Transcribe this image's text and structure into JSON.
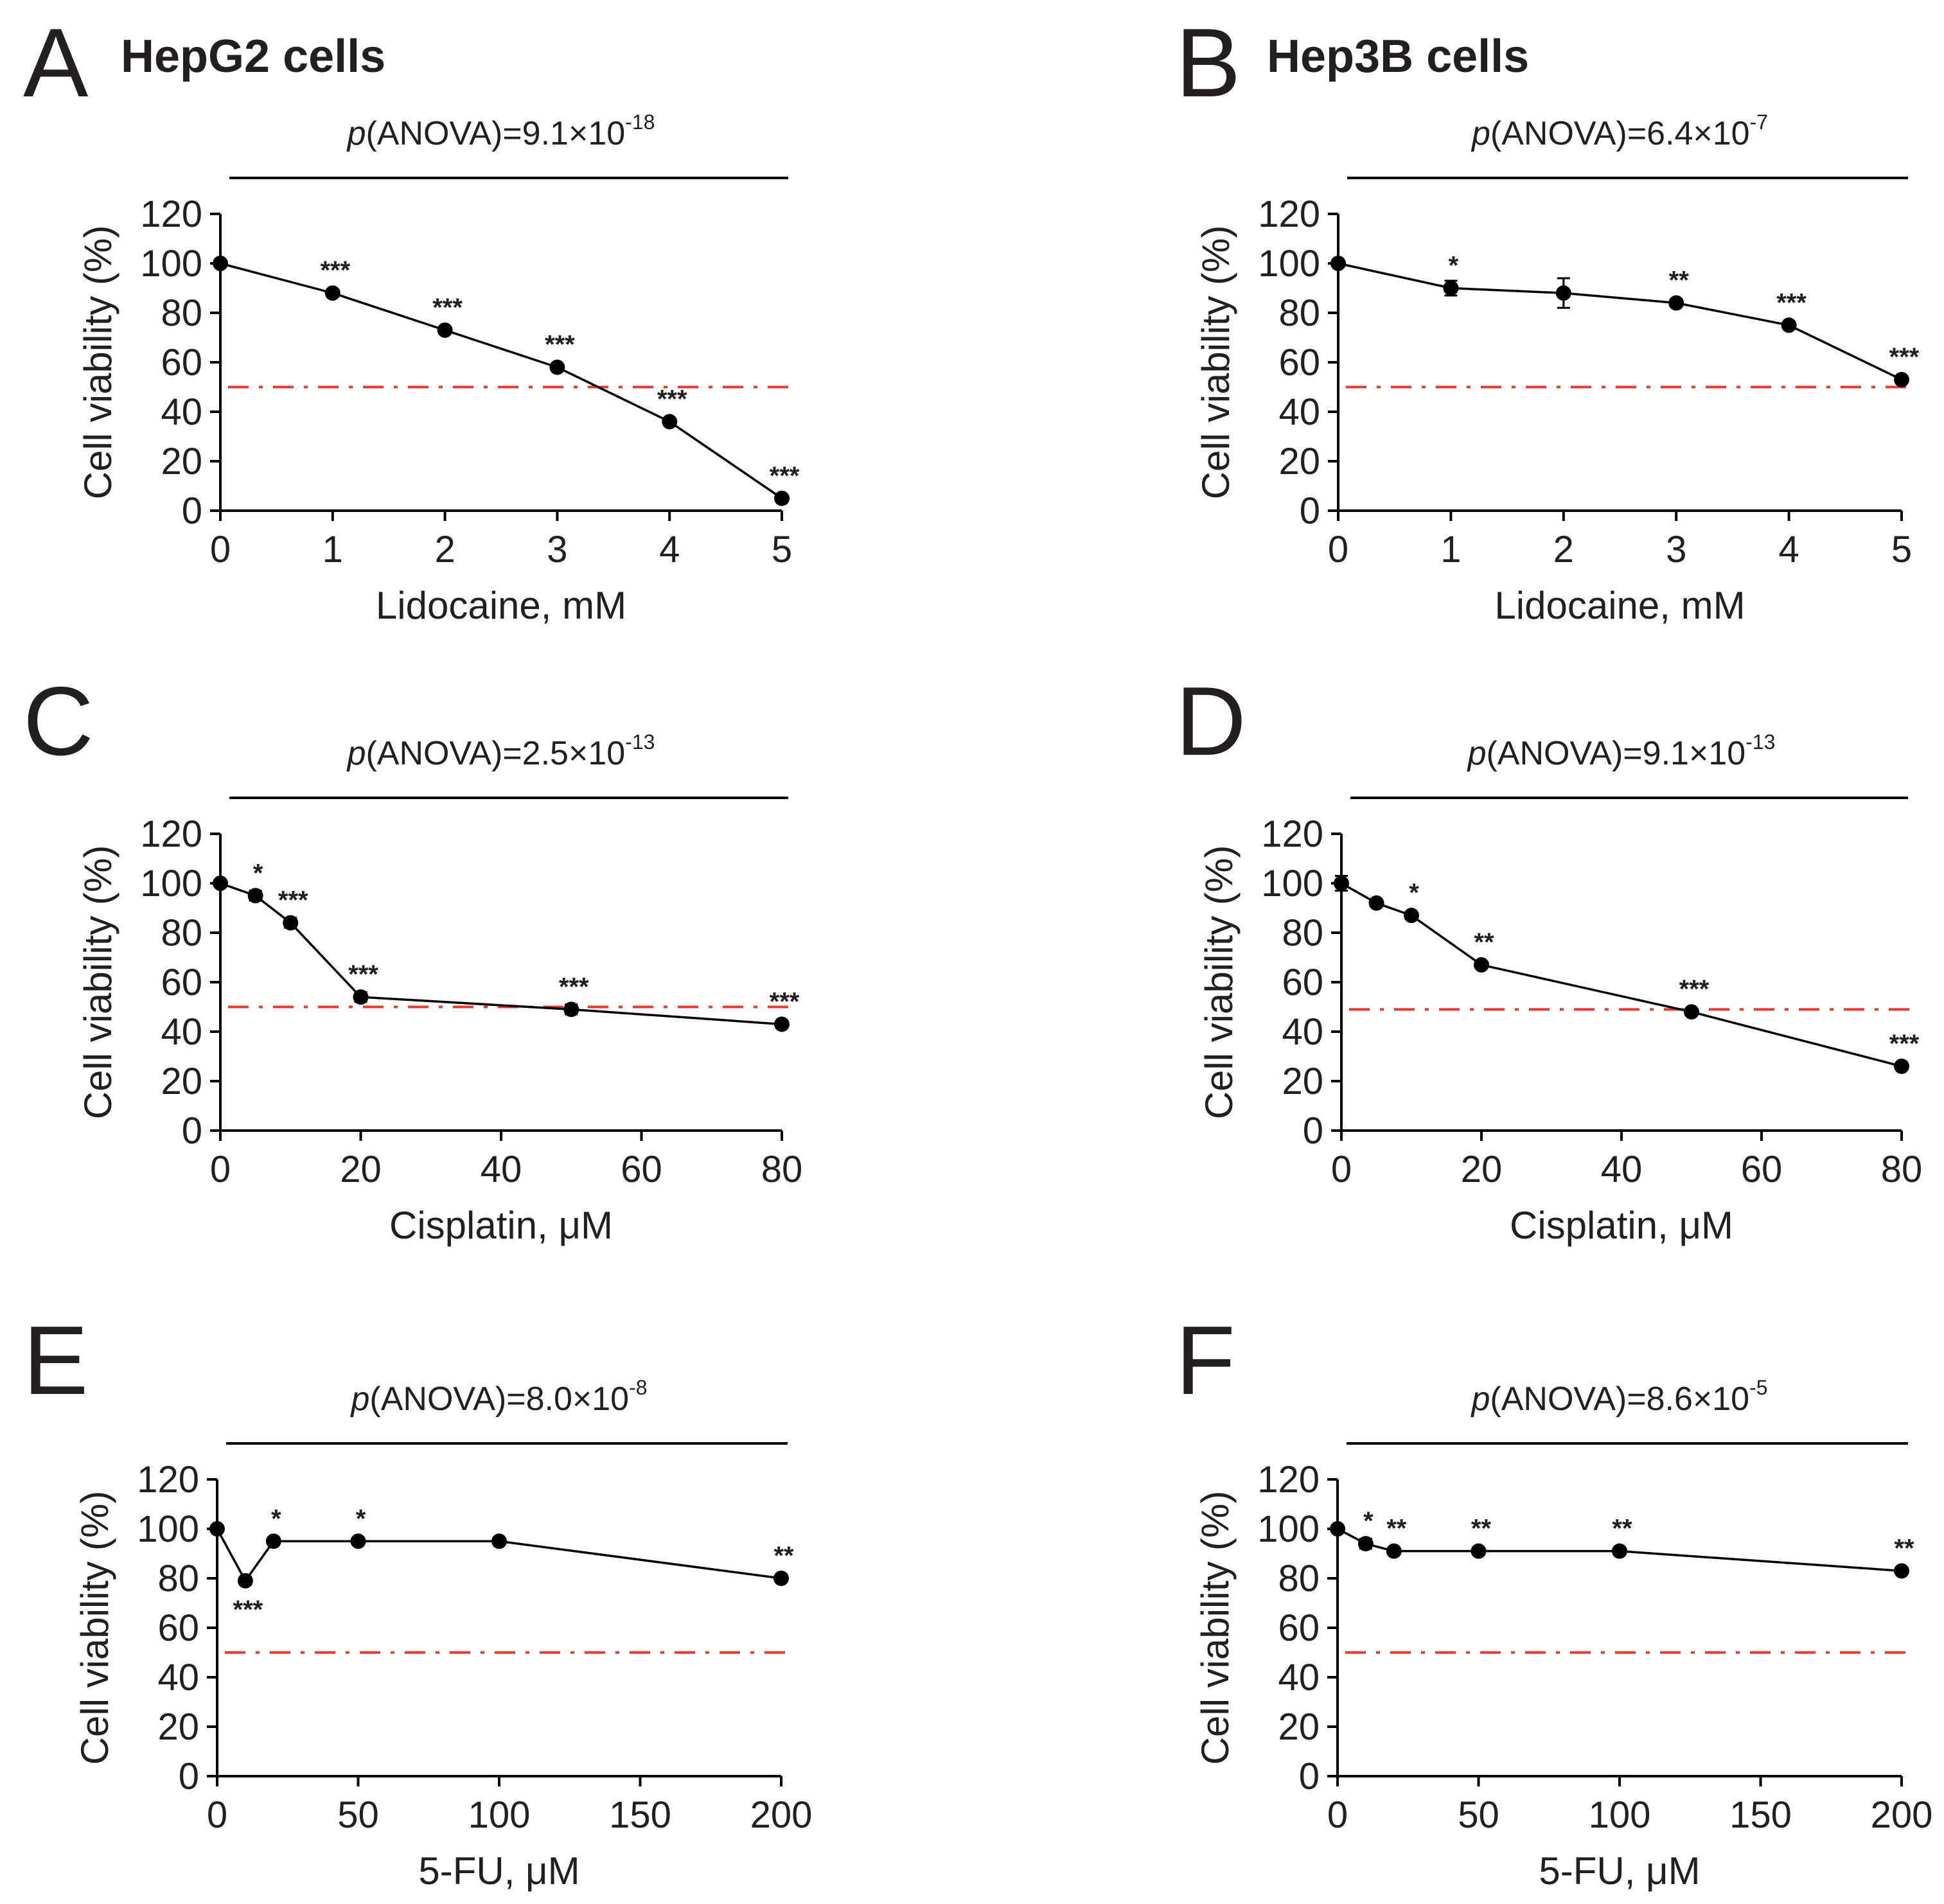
{
  "columns": {
    "left_title": "HepG2 cells",
    "right_title": "Hep3B cells"
  },
  "colors": {
    "axis": "#000000",
    "series": "#000000",
    "reference_line": "#e8372c",
    "text": "#231f20"
  },
  "chart_data": [
    {
      "panel": "A",
      "type": "line",
      "cell_line": "HepG2",
      "p_anova_prefix": "(ANOVA)=9.1×10",
      "p_anova_exponent": "-18",
      "xlabel": "Lidocaine, mM",
      "ylabel": "Cell viability (%)",
      "xlim": [
        0,
        5
      ],
      "ylim": [
        0,
        120
      ],
      "xticks": [
        0,
        1,
        2,
        3,
        4,
        5
      ],
      "yticks": [
        0,
        20,
        40,
        60,
        80,
        100,
        120
      ],
      "reference_line": 50,
      "x": [
        0,
        1,
        2,
        3,
        4,
        5
      ],
      "y": [
        100,
        88,
        73,
        58,
        36,
        5
      ],
      "err": [
        1,
        1,
        1,
        1,
        1,
        1
      ],
      "significance": [
        "",
        "***",
        "***",
        "***",
        "***",
        "***"
      ]
    },
    {
      "panel": "B",
      "type": "line",
      "cell_line": "Hep3B",
      "p_anova_prefix": "(ANOVA)=6.4×10",
      "p_anova_exponent": "-7",
      "xlabel": "Lidocaine, mM",
      "ylabel": "Cell viability (%)",
      "xlim": [
        0,
        5
      ],
      "ylim": [
        0,
        120
      ],
      "xticks": [
        0,
        1,
        2,
        3,
        4,
        5
      ],
      "yticks": [
        0,
        20,
        40,
        60,
        80,
        100,
        120
      ],
      "reference_line": 50,
      "x": [
        0,
        1,
        2,
        3,
        4,
        5
      ],
      "y": [
        100,
        90,
        88,
        84,
        75,
        53
      ],
      "err": [
        1,
        3,
        6,
        1.5,
        1,
        1.5
      ],
      "significance": [
        "",
        "*",
        "",
        "**",
        "***",
        "***"
      ]
    },
    {
      "panel": "C",
      "type": "line",
      "cell_line": "HepG2",
      "p_anova_prefix": "(ANOVA)=2.5×10",
      "p_anova_exponent": "-13",
      "xlabel": "Cisplatin, μM",
      "ylabel": "Cell viability (%)",
      "xlim": [
        0,
        80
      ],
      "ylim": [
        0,
        120
      ],
      "xticks": [
        0,
        20,
        40,
        60,
        80
      ],
      "yticks": [
        0,
        20,
        40,
        60,
        80,
        100,
        120
      ],
      "reference_line": 50,
      "x": [
        0,
        5,
        10,
        20,
        50,
        80
      ],
      "y": [
        100,
        95,
        84,
        54,
        49,
        43
      ],
      "err": [
        1,
        2,
        2,
        2,
        2,
        1
      ],
      "significance": [
        "",
        "*",
        "***",
        "***",
        "***",
        "***"
      ]
    },
    {
      "panel": "D",
      "type": "line",
      "cell_line": "Hep3B",
      "p_anova_prefix": "(ANOVA)=9.1×10",
      "p_anova_exponent": "-13",
      "xlabel": "Cisplatin, μM",
      "ylabel": "Cell viability (%)",
      "xlim": [
        0,
        80
      ],
      "ylim": [
        0,
        120
      ],
      "xticks": [
        0,
        20,
        40,
        60,
        80
      ],
      "yticks": [
        0,
        20,
        40,
        60,
        80,
        100,
        120
      ],
      "reference_line": 49,
      "x": [
        0,
        5,
        10,
        20,
        50,
        80
      ],
      "y": [
        100,
        92,
        87,
        67,
        48,
        26
      ],
      "err": [
        3,
        1,
        1,
        1,
        1,
        1
      ],
      "significance": [
        "",
        "",
        "*",
        "**",
        "***",
        "***"
      ]
    },
    {
      "panel": "E",
      "type": "line",
      "cell_line": "HepG2",
      "p_anova_prefix": "(ANOVA)=8.0×10",
      "p_anova_exponent": "-8",
      "xlabel": "5-FU, μM",
      "ylabel": "Cell viability (%)",
      "xlim": [
        0,
        200
      ],
      "ylim": [
        0,
        120
      ],
      "xticks": [
        0,
        50,
        100,
        150,
        200
      ],
      "yticks": [
        0,
        20,
        40,
        60,
        80,
        100,
        120
      ],
      "reference_line": 50,
      "x": [
        0,
        10,
        20,
        50,
        100,
        200
      ],
      "y": [
        100,
        79,
        95,
        95,
        95,
        80
      ],
      "err": [
        1,
        1.5,
        1,
        1,
        1,
        1
      ],
      "significance": [
        "",
        "***",
        "*",
        "*",
        "",
        "**"
      ],
      "significance_below": [
        false,
        true,
        false,
        false,
        false,
        false
      ]
    },
    {
      "panel": "F",
      "type": "line",
      "cell_line": "Hep3B",
      "p_anova_prefix": "(ANOVA)=8.6×10",
      "p_anova_exponent": "-5",
      "xlabel": "5-FU, μM",
      "ylabel": "Cell viability (%)",
      "xlim": [
        0,
        200
      ],
      "ylim": [
        0,
        120
      ],
      "xticks": [
        0,
        50,
        100,
        150,
        200
      ],
      "yticks": [
        0,
        20,
        40,
        60,
        80,
        100,
        120
      ],
      "reference_line": 50,
      "x": [
        0,
        10,
        20,
        50,
        100,
        200
      ],
      "y": [
        100,
        94,
        91,
        91,
        91,
        83
      ],
      "err": [
        1,
        2,
        1,
        1,
        1,
        1
      ],
      "significance": [
        "",
        "*",
        "**",
        "**",
        "**",
        "**"
      ]
    }
  ]
}
